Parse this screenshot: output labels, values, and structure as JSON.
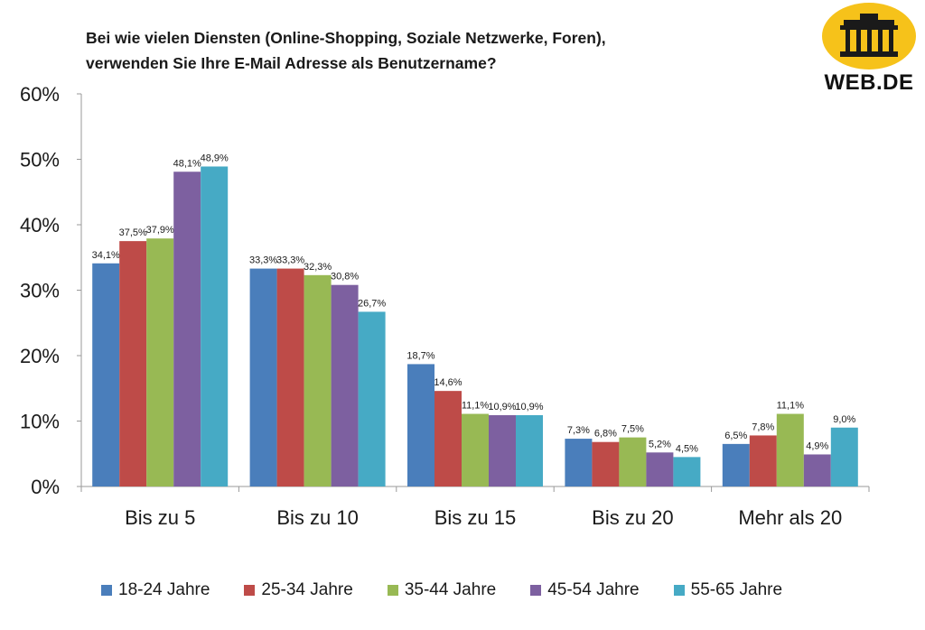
{
  "header": {
    "title_line1": "Bei wie vielen Diensten (Online-Shopping, Soziale Netzwerke, Foren),",
    "title_line2": "verwenden Sie Ihre E-Mail Adresse als Benutzername?"
  },
  "logo": {
    "text": "WEB.DE"
  },
  "chart_data": {
    "type": "bar",
    "title": "Bei wie vielen Diensten (Online-Shopping, Soziale Netzwerke, Foren), verwenden Sie Ihre E-Mail Adresse als Benutzername?",
    "categories": [
      "Bis zu 5",
      "Bis zu 10",
      "Bis zu 15",
      "Bis zu  20",
      "Mehr als 20"
    ],
    "series": [
      {
        "name": "18-24 Jahre",
        "color": "#4a7ebb",
        "values": [
          34.1,
          33.3,
          18.7,
          7.3,
          6.5
        ],
        "labels": [
          "34,1%",
          "33,3%",
          "18,7%",
          "7,3%",
          "6,5%"
        ]
      },
      {
        "name": "25-34 Jahre",
        "color": "#be4b48",
        "values": [
          37.5,
          33.3,
          14.6,
          6.8,
          7.8
        ],
        "labels": [
          "37,5%",
          "33,3%",
          "14,6%",
          "6,8%",
          "7,8%"
        ]
      },
      {
        "name": "35-44 Jahre",
        "color": "#98b954",
        "values": [
          37.9,
          32.3,
          11.1,
          7.5,
          11.1
        ],
        "labels": [
          "37,9%",
          "32,3%",
          "11,1%",
          "7,5%",
          "11,1%"
        ]
      },
      {
        "name": "45-54 Jahre",
        "color": "#7d60a0",
        "values": [
          48.1,
          30.8,
          10.9,
          5.2,
          4.9
        ],
        "labels": [
          "48,1%",
          "30,8%",
          "10,9%",
          "5,2%",
          "4,9%"
        ]
      },
      {
        "name": "55-65 Jahre",
        "color": "#46aac5",
        "values": [
          48.9,
          26.7,
          10.9,
          4.5,
          9.0
        ],
        "labels": [
          "48,9%",
          "26,7%",
          "10,9%",
          "4,5%",
          "9,0%"
        ]
      }
    ],
    "yticks": [
      0,
      10,
      20,
      30,
      40,
      50,
      60
    ],
    "ytick_labels": [
      "0%",
      "10%",
      "20%",
      "30%",
      "40%",
      "50%",
      "60%"
    ],
    "ylim": [
      0,
      60
    ],
    "grid": false,
    "legend_position": "bottom"
  }
}
